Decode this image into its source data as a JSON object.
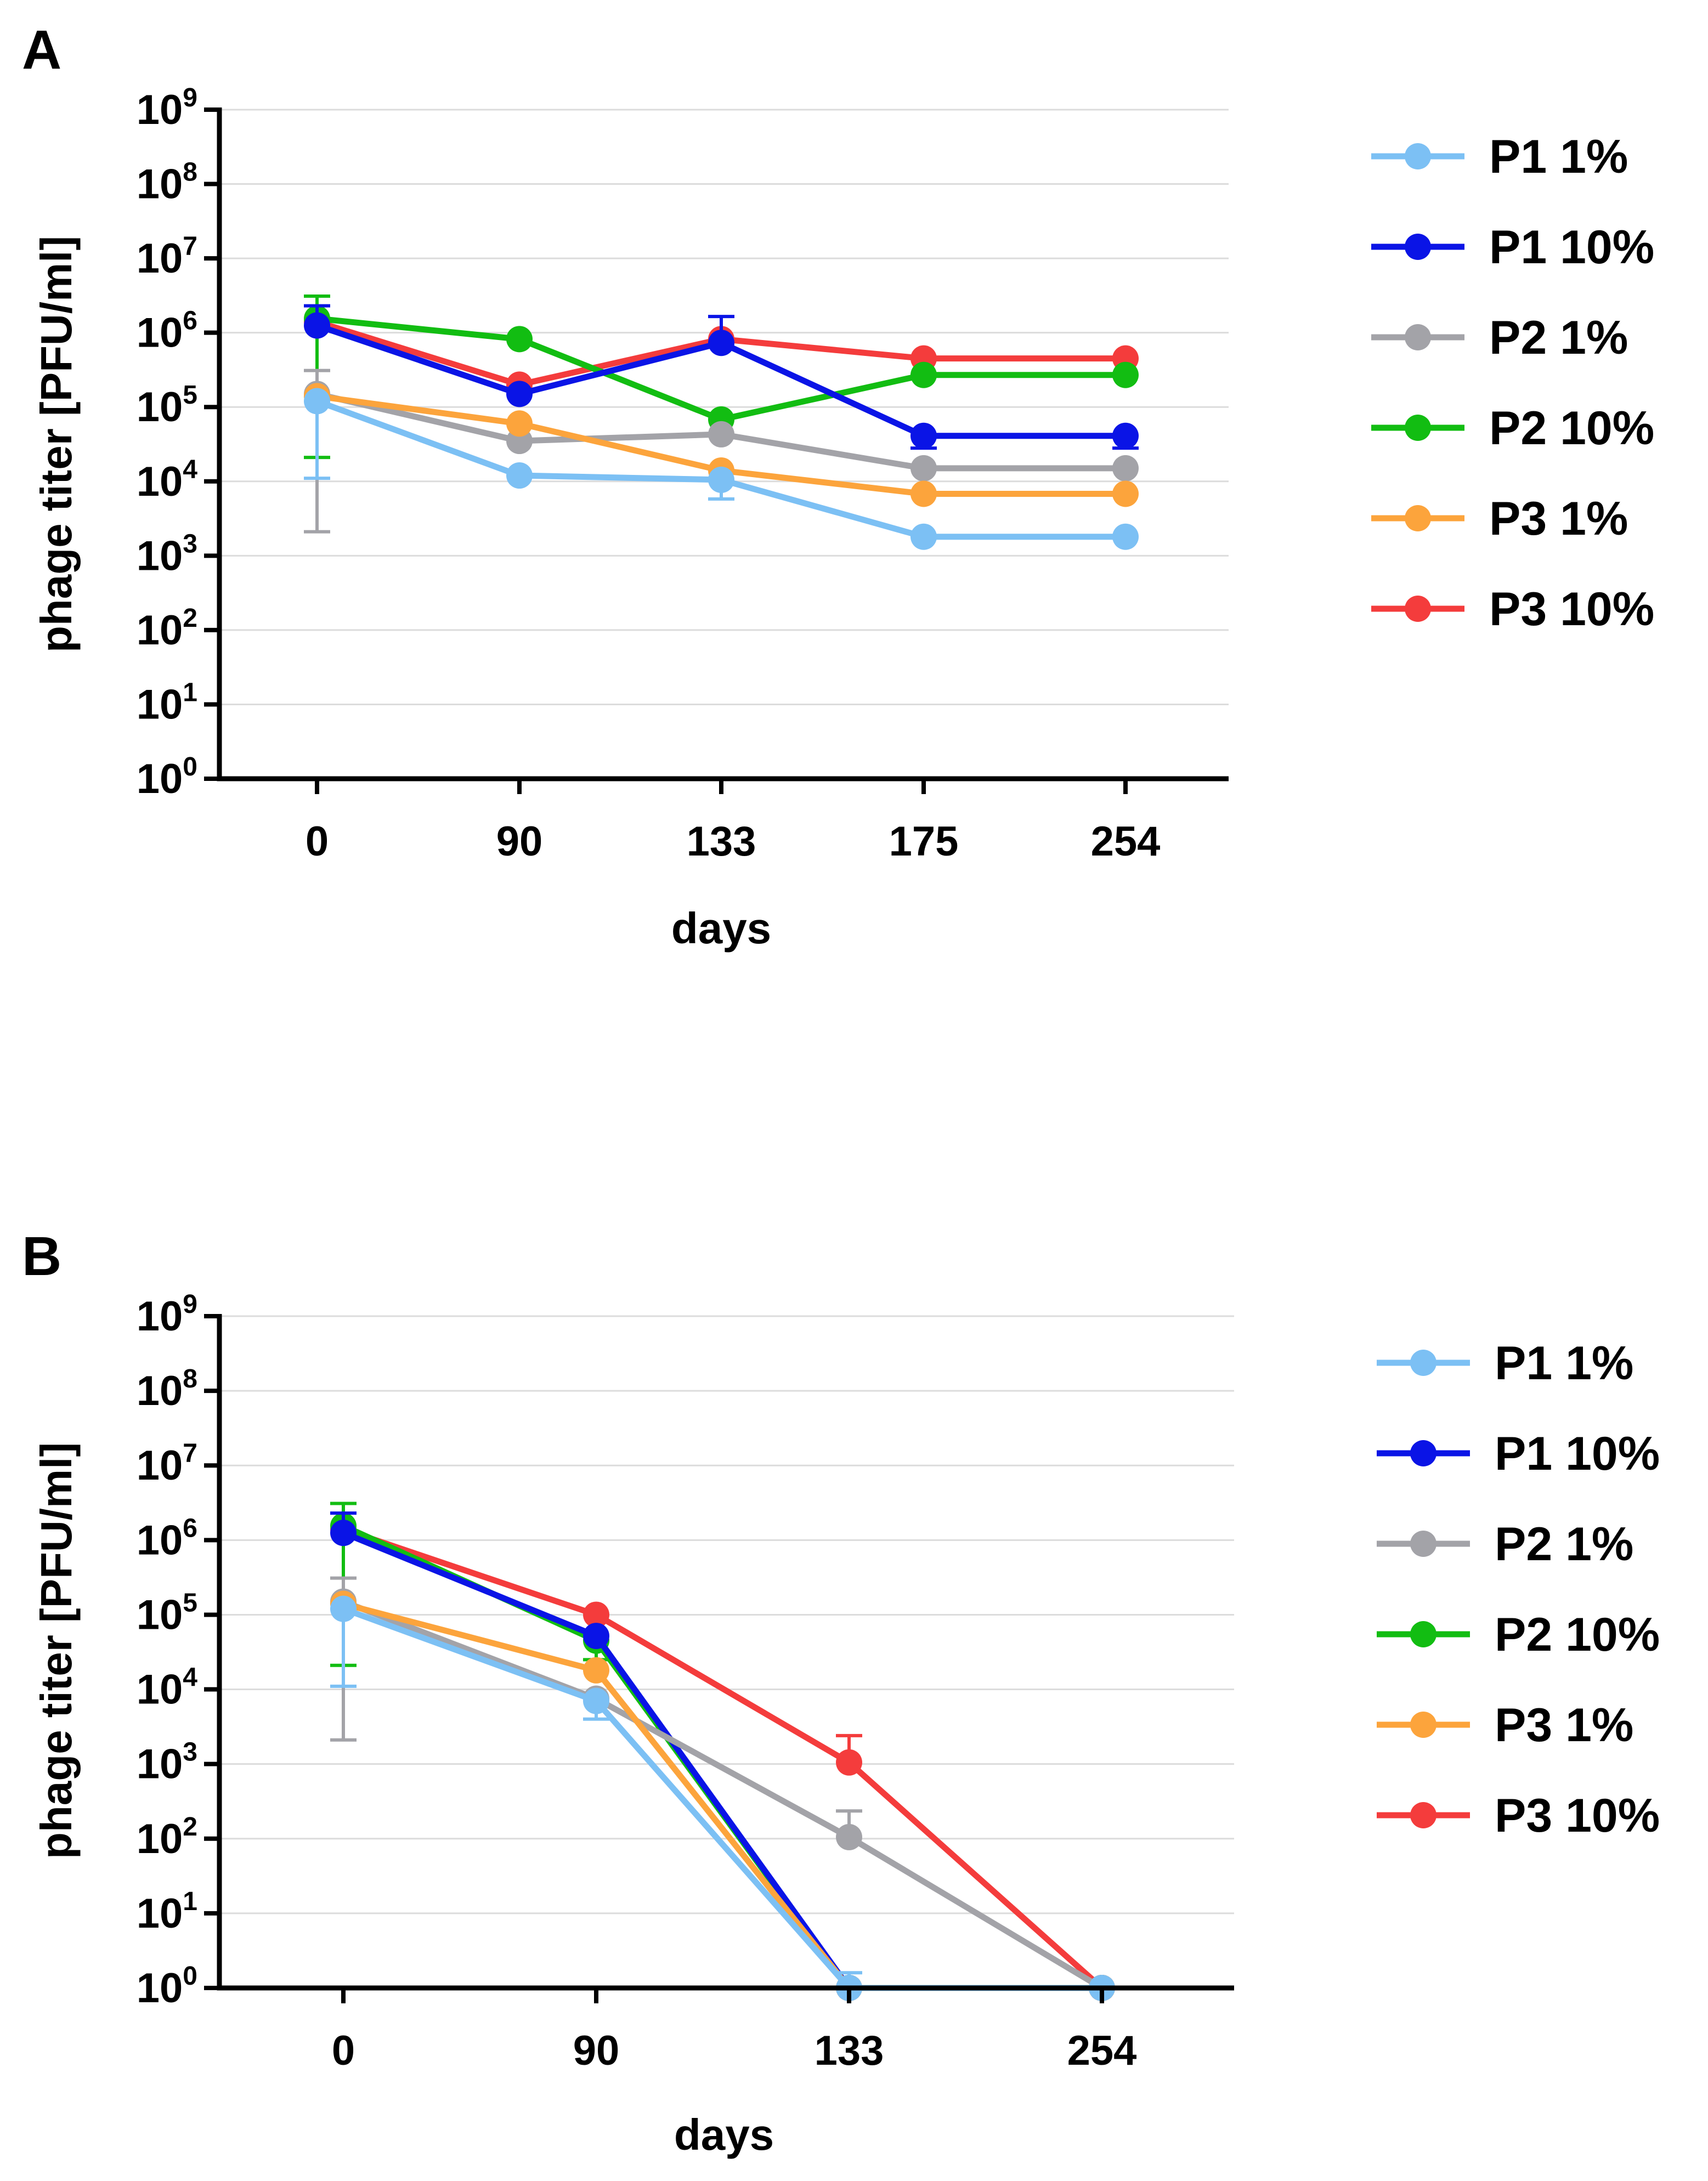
{
  "colors": {
    "P1 1%": "#7cc0f4",
    "P1 10%": "#0a14e6",
    "P2 1%": "#a3a3a8",
    "P2 10%": "#12bd12",
    "P3 1%": "#fca43c",
    "P3 10%": "#f43c3c"
  },
  "chart_data": [
    {
      "panel": "A",
      "type": "line",
      "yscale": "log10",
      "ylim": [
        1,
        1000000000
      ],
      "ylabel": "phage titer [PFU/ml]",
      "xlabel": "days",
      "categories": [
        "0",
        "90",
        "133",
        "175",
        "254"
      ],
      "ytick_exponents": [
        "0",
        "1",
        "2",
        "3",
        "4",
        "5",
        "6",
        "7",
        "8",
        "9"
      ],
      "legend_position": "right",
      "series": [
        {
          "name": "P3 10%",
          "values": [
            1400000,
            200000,
            820000,
            450000,
            450000
          ],
          "err_up": [
            null,
            null,
            null,
            null,
            null
          ],
          "err_down": [
            null,
            null,
            null,
            null,
            null
          ]
        },
        {
          "name": "P2 10%",
          "values": [
            1550000,
            820000,
            68000,
            270000,
            270000
          ],
          "err_up": [
            3100000,
            null,
            null,
            null,
            null
          ],
          "err_down": [
            21000,
            null,
            null,
            null,
            null
          ]
        },
        {
          "name": "P1 10%",
          "values": [
            1250000,
            150000,
            730000,
            41000,
            41000
          ],
          "err_up": [
            2300000,
            null,
            1650000,
            null,
            null
          ],
          "err_down": [
            null,
            null,
            null,
            28000,
            28000
          ]
        },
        {
          "name": "P2 1%",
          "values": [
            150000,
            35000,
            43000,
            15000,
            15000
          ],
          "err_up": [
            310000,
            null,
            null,
            null,
            null
          ],
          "err_down": [
            2100,
            null,
            null,
            null,
            null
          ]
        },
        {
          "name": "P3 1%",
          "values": [
            140000,
            60000,
            14000,
            6800,
            6800
          ],
          "err_up": [
            null,
            null,
            null,
            null,
            null
          ],
          "err_down": [
            null,
            null,
            null,
            null,
            null
          ]
        },
        {
          "name": "P1 1%",
          "values": [
            120000,
            12000,
            10500,
            1800,
            1800
          ],
          "err_up": [
            null,
            null,
            null,
            null,
            null
          ],
          "err_down": [
            11000,
            null,
            5800,
            null,
            null
          ]
        }
      ]
    },
    {
      "panel": "B",
      "type": "line",
      "yscale": "log10",
      "ylim": [
        1,
        1000000000
      ],
      "ylabel": "phage titer [PFU/ml]",
      "xlabel": "days",
      "categories": [
        "0",
        "90",
        "133",
        "254"
      ],
      "ytick_exponents": [
        "0",
        "1",
        "2",
        "3",
        "4",
        "5",
        "6",
        "7",
        "8",
        "9"
      ],
      "legend_position": "right",
      "series": [
        {
          "name": "P3 10%",
          "values": [
            1400000,
            100000,
            1050,
            1
          ],
          "err_up": [
            null,
            null,
            2400,
            null
          ],
          "err_down": [
            null,
            null,
            null,
            null
          ]
        },
        {
          "name": "P2 10%",
          "values": [
            1550000,
            45000,
            1,
            1
          ],
          "err_up": [
            3100000,
            null,
            null,
            null
          ],
          "err_down": [
            21000,
            25000,
            null,
            null
          ]
        },
        {
          "name": "P1 10%",
          "values": [
            1250000,
            52000,
            1,
            1
          ],
          "err_up": [
            2300000,
            null,
            null,
            null
          ],
          "err_down": [
            null,
            null,
            null,
            null
          ]
        },
        {
          "name": "P2 1%",
          "values": [
            150000,
            7500,
            105,
            1
          ],
          "err_up": [
            310000,
            null,
            235,
            null
          ],
          "err_down": [
            2100,
            null,
            null,
            null
          ]
        },
        {
          "name": "P3 1%",
          "values": [
            140000,
            18000,
            1,
            1
          ],
          "err_up": [
            null,
            null,
            null,
            null
          ],
          "err_down": [
            null,
            null,
            null,
            null
          ]
        },
        {
          "name": "P1 1%",
          "values": [
            120000,
            7000,
            1,
            1
          ],
          "err_up": [
            null,
            null,
            1.6,
            null
          ],
          "err_down": [
            11000,
            4000,
            null,
            null
          ]
        }
      ]
    }
  ],
  "legend_order": [
    "P1 1%",
    "P1 10%",
    "P2 1%",
    "P2 10%",
    "P3 1%",
    "P3 10%"
  ]
}
